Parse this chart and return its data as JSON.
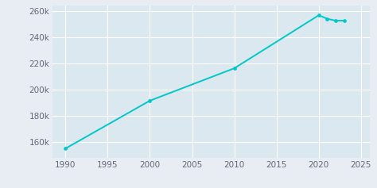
{
  "years": [
    1990,
    2000,
    2010,
    2020,
    2021,
    2022,
    2023
  ],
  "population": [
    155142,
    191615,
    216290,
    256684,
    254010,
    252577,
    252575
  ],
  "line_color": "#00c8c8",
  "marker_color": "#00c8c8",
  "fig_bg_color": "#e8edf3",
  "plot_bg_color": "#dce8f0",
  "grid_color": "#ffffff",
  "tick_color": "#606878",
  "xlim": [
    1988.5,
    2026
  ],
  "ylim": [
    148000,
    264000
  ],
  "xticks": [
    1990,
    1995,
    2000,
    2005,
    2010,
    2015,
    2020,
    2025
  ],
  "yticks": [
    160000,
    180000,
    200000,
    220000,
    240000,
    260000
  ],
  "tick_fontsize": 7.5,
  "linewidth": 1.4,
  "markersize": 2.8
}
